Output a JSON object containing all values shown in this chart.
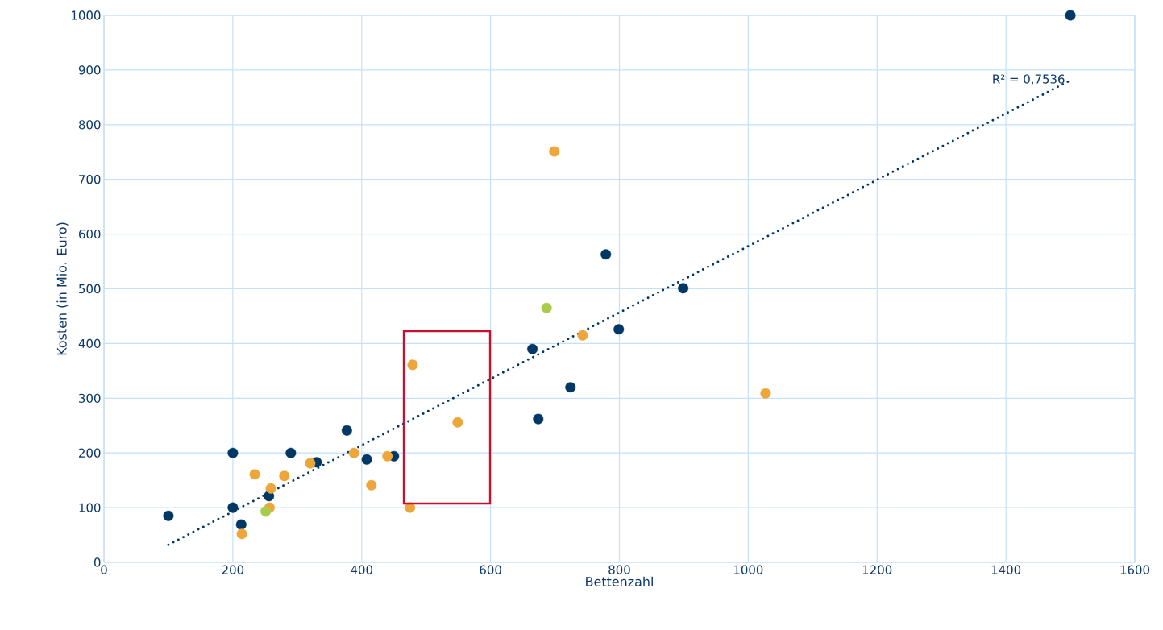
{
  "chart_data": {
    "type": "scatter",
    "xlabel": "Bettenzahl",
    "ylabel": "Kosten (in Mio. Euro)",
    "xlim": [
      0,
      1600
    ],
    "xticks": [
      0,
      200,
      400,
      600,
      800,
      1000,
      1200,
      1400,
      1600
    ],
    "ylim": [
      0,
      1000
    ],
    "yticks": [
      0,
      100,
      200,
      300,
      400,
      500,
      600,
      700,
      800,
      900,
      1000
    ],
    "grid": true,
    "series": [
      {
        "color": "#003865",
        "x": [
          100,
          200,
          200,
          213,
          256,
          290,
          330,
          377,
          408,
          450,
          665,
          674,
          724,
          779,
          799,
          899,
          1500
        ],
        "values": [
          85,
          200,
          100,
          69,
          121,
          200,
          183,
          241,
          188,
          194,
          390,
          262,
          320,
          563,
          426,
          501,
          1000
        ]
      },
      {
        "color": "#EDA63A",
        "x": [
          214,
          234,
          259,
          257,
          280,
          320,
          388,
          415,
          440,
          475,
          479,
          549,
          699,
          743,
          1027
        ],
        "values": [
          52,
          161,
          135,
          100,
          158,
          181,
          200,
          141,
          194,
          100,
          361,
          256,
          751,
          415,
          309
        ]
      },
      {
        "color": "#A9CB4A",
        "x": [
          251,
          687
        ],
        "values": [
          93,
          465
        ]
      },
      {
        "type": "line",
        "color": "#003865",
        "line_style": "dotted",
        "x": [
          100,
          1500
        ],
        "values": [
          32,
          881
        ]
      }
    ],
    "annotations": [
      "R² = 0,7536"
    ]
  }
}
